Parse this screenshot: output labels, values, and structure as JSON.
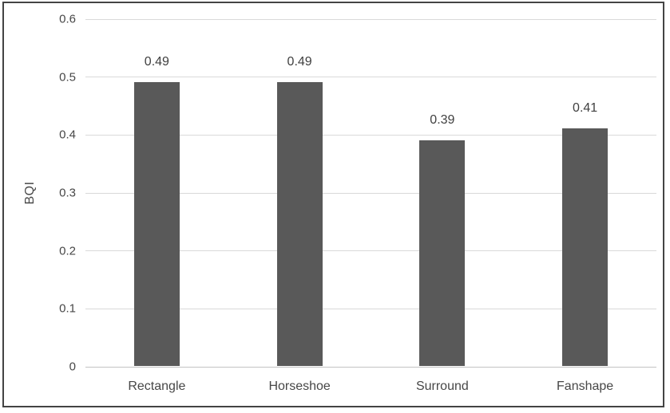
{
  "chart_data": {
    "type": "bar",
    "title": "",
    "categories": [
      "Rectangle",
      "Horseshoe",
      "Surround",
      "Fanshape"
    ],
    "values": [
      0.49,
      0.49,
      0.39,
      0.41
    ],
    "data_labels": [
      "0.49",
      "0.49",
      "0.39",
      "0.41"
    ],
    "xlabel": "",
    "ylabel": "BQI",
    "ylim": [
      0,
      0.6
    ],
    "ytick_interval": 0.1,
    "ytick_labels": [
      "0",
      "0.1",
      "0.2",
      "0.3",
      "0.4",
      "0.5",
      "0.6"
    ],
    "grid": true,
    "legend_position": "none",
    "bar_color": "#595959",
    "gridline_color": "#d9d9d9",
    "axis_baseline_color": "#c3c3c3",
    "text_color": "#474747",
    "figure_border_color": "#444444",
    "background_color": "#ffffff"
  }
}
